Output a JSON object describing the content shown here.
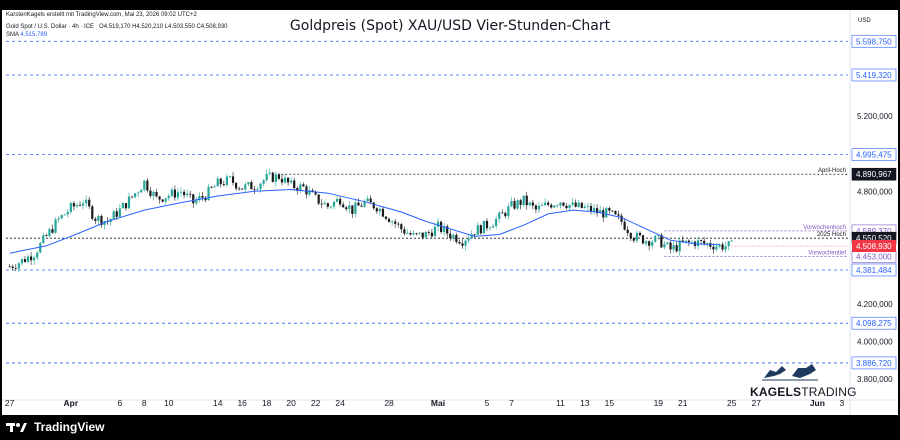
{
  "header": {
    "attribution": "KarstenKagels erstellt mit TradingView.com, Mai 23, 2026 09:02 UTC+2",
    "title": "Goldpreis (Spot) XAU/USD Vier-Stunden-Chart",
    "symbol": "Gold Spot / U.S. Dollar · 4h · ICE",
    "ohlc": "O4.519,170  H4.520,210  L4.503,550  C4.508,930",
    "sma_label": "SMA",
    "sma_value": "4.515,789",
    "currency": "USD"
  },
  "footer": {
    "tradingview": "TradingView"
  },
  "brand": {
    "bold": "KAGELS",
    "thin": "TRADING"
  },
  "colors": {
    "up": "#26a69a",
    "down": "#1a1a1a",
    "sma": "#2962ff",
    "current_price": "#f23645",
    "level_line": "#2962ff",
    "purple": "#7e57c2"
  },
  "chart_data": {
    "type": "candlestick",
    "title": "Goldpreis (Spot) XAU/USD Vier-Stunden-Chart",
    "ylim": [
      3700,
      5680
    ],
    "y_ticks": [
      "5.200,000",
      "4.800,000",
      "4.200,000",
      "4.000,000",
      "3.800,000"
    ],
    "x_ticks": [
      {
        "label": "27",
        "day": -5
      },
      {
        "label": "Apr",
        "day": 0
      },
      {
        "label": "6",
        "day": 4
      },
      {
        "label": "8",
        "day": 6
      },
      {
        "label": "10",
        "day": 8
      },
      {
        "label": "14",
        "day": 12
      },
      {
        "label": "16",
        "day": 14
      },
      {
        "label": "18",
        "day": 16
      },
      {
        "label": "20",
        "day": 18
      },
      {
        "label": "22",
        "day": 20
      },
      {
        "label": "24",
        "day": 22
      },
      {
        "label": "28",
        "day": 26
      },
      {
        "label": "Mai",
        "day": 30
      },
      {
        "label": "5",
        "day": 34
      },
      {
        "label": "7",
        "day": 36
      },
      {
        "label": "11",
        "day": 40
      },
      {
        "label": "13",
        "day": 42
      },
      {
        "label": "15",
        "day": 44
      },
      {
        "label": "19",
        "day": 48
      },
      {
        "label": "21",
        "day": 50
      },
      {
        "label": "25",
        "day": 54
      },
      {
        "label": "27",
        "day": 56
      },
      {
        "label": "Jun",
        "day": 61
      },
      {
        "label": "3",
        "day": 63
      }
    ],
    "levels": [
      {
        "value": 5598.75,
        "label": "5.598,750",
        "style": "dashed-blue"
      },
      {
        "value": 5419.32,
        "label": "5.419,320",
        "style": "dashed-blue"
      },
      {
        "value": 4995.475,
        "label": "4.995,475",
        "style": "dashed-blue"
      },
      {
        "value": 4890.967,
        "label": "4.890,967",
        "style": "dashed-black",
        "note": "April-Hoch"
      },
      {
        "value": 4589.37,
        "label": "4.589,370",
        "style": "dashed-purple",
        "note": "Vorwochenhoch"
      },
      {
        "value": 4550.52,
        "label": "4.550,520",
        "style": "dashed-black",
        "note": "2025 Hoch"
      },
      {
        "value": 4453.0,
        "label": "4.453,000",
        "style": "dashed-purple",
        "note": "Vorwochentief"
      },
      {
        "value": 4381.484,
        "label": "4.381,484",
        "style": "dashed-blue"
      },
      {
        "value": 4098.275,
        "label": "4.098,275",
        "style": "dashed-blue"
      },
      {
        "value": 3886.72,
        "label": "3.886,720",
        "style": "dashed-blue"
      }
    ],
    "current_price": {
      "value": 4508.93,
      "label": "4.508,930"
    },
    "sma_series": [
      [
        -5,
        4470
      ],
      [
        -2,
        4510
      ],
      [
        0,
        4560
      ],
      [
        3,
        4640
      ],
      [
        6,
        4700
      ],
      [
        9,
        4740
      ],
      [
        12,
        4775
      ],
      [
        15,
        4800
      ],
      [
        18,
        4810
      ],
      [
        21,
        4790
      ],
      [
        24,
        4745
      ],
      [
        27,
        4690
      ],
      [
        29,
        4640
      ],
      [
        31,
        4600
      ],
      [
        33,
        4560
      ],
      [
        35,
        4570
      ],
      [
        37,
        4620
      ],
      [
        39,
        4680
      ],
      [
        41,
        4700
      ],
      [
        43,
        4690
      ],
      [
        45,
        4660
      ],
      [
        47,
        4600
      ],
      [
        49,
        4540
      ],
      [
        51,
        4520
      ],
      [
        53,
        4515.789
      ]
    ],
    "price_path": [
      [
        -5,
        4400
      ],
      [
        -4,
        4430
      ],
      [
        -3,
        4470
      ],
      [
        -2,
        4560
      ],
      [
        -1,
        4650
      ],
      [
        0,
        4710
      ],
      [
        1,
        4750
      ],
      [
        2,
        4660
      ],
      [
        3,
        4640
      ],
      [
        4,
        4700
      ],
      [
        5,
        4770
      ],
      [
        6,
        4850
      ],
      [
        7,
        4760
      ],
      [
        8,
        4780
      ],
      [
        9,
        4800
      ],
      [
        10,
        4740
      ],
      [
        11,
        4780
      ],
      [
        12,
        4840
      ],
      [
        13,
        4860
      ],
      [
        14,
        4820
      ],
      [
        15,
        4830
      ],
      [
        16,
        4870
      ],
      [
        17,
        4880
      ],
      [
        18,
        4830
      ],
      [
        19,
        4820
      ],
      [
        20,
        4760
      ],
      [
        21,
        4720
      ],
      [
        22,
        4760
      ],
      [
        23,
        4700
      ],
      [
        24,
        4740
      ],
      [
        25,
        4720
      ],
      [
        26,
        4660
      ],
      [
        27,
        4600
      ],
      [
        28,
        4560
      ],
      [
        29,
        4570
      ],
      [
        30,
        4610
      ],
      [
        31,
        4570
      ],
      [
        32,
        4540
      ],
      [
        33,
        4590
      ],
      [
        34,
        4620
      ],
      [
        35,
        4660
      ],
      [
        36,
        4720
      ],
      [
        37,
        4750
      ],
      [
        38,
        4700
      ],
      [
        39,
        4730
      ],
      [
        40,
        4750
      ],
      [
        41,
        4720
      ],
      [
        42,
        4710
      ],
      [
        43,
        4690
      ],
      [
        44,
        4680
      ],
      [
        45,
        4640
      ],
      [
        46,
        4560
      ],
      [
        47,
        4540
      ],
      [
        48,
        4540
      ],
      [
        49,
        4490
      ],
      [
        50,
        4520
      ],
      [
        51,
        4530
      ],
      [
        52,
        4520
      ],
      [
        53,
        4510
      ],
      [
        54,
        4508.93
      ]
    ]
  }
}
